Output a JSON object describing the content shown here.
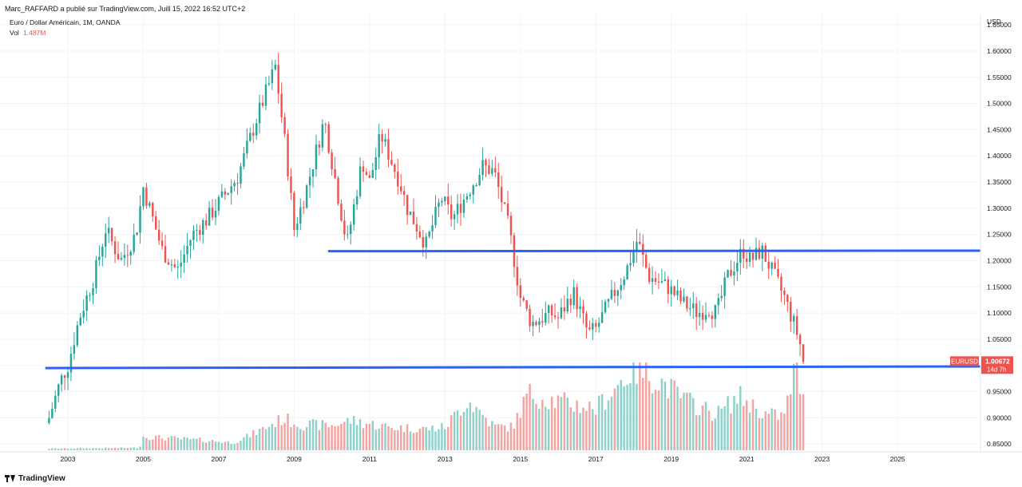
{
  "header": {
    "publisher_line": "Marc_RAFFARD a publié sur TradingView.com, Juill 15, 2022 16:52 UTC+2"
  },
  "footer": {
    "brand": "TradingView"
  },
  "colors": {
    "up": "#26a69a",
    "down": "#ef5350",
    "vol_up": "#8fd1ca",
    "vol_down": "#f5a3a1",
    "trendline": "#2962ff",
    "grid": "#f0f3fa",
    "axis_text": "#131722"
  },
  "chart_data": {
    "type": "candlestick",
    "title": "Euro / Dollar Américain, 1M, OANDA",
    "volume_label": "Vol",
    "volume_value": "1.487M",
    "currency_label": "USD",
    "symbol_tag": "EURUSD",
    "last_price": "1.00672",
    "countdown": "14d 7h",
    "ylim": [
      0.835,
      1.67
    ],
    "y_ticks": [
      "1.65000",
      "1.60000",
      "1.55000",
      "1.50000",
      "1.45000",
      "1.40000",
      "1.35000",
      "1.30000",
      "1.25000",
      "1.20000",
      "1.15000",
      "1.10000",
      "1.05000",
      "1.00000",
      "0.95000",
      "0.90000",
      "0.85000"
    ],
    "x_ticks": [
      "2003",
      "2005",
      "2007",
      "2009",
      "2011",
      "2013",
      "2015",
      "2017",
      "2019",
      "2021",
      "2023",
      "2025"
    ],
    "xlim": [
      2001.2,
      2027.2
    ],
    "horizontal_lines": [
      {
        "name": "resistance-support-upper",
        "x1": 2009.9,
        "x2": 2027.2,
        "y1": 1.218,
        "y2": 1.219
      },
      {
        "name": "resistance-support-lower",
        "x1": 2002.4,
        "x2": 2027.2,
        "y1": 0.995,
        "y2": 0.998
      }
    ],
    "price_path": [
      [
        2002.5,
        0.9
      ],
      [
        2002.8,
        0.97
      ],
      [
        2003.0,
        1.0
      ],
      [
        2003.3,
        1.09
      ],
      [
        2003.7,
        1.17
      ],
      [
        2004.0,
        1.26
      ],
      [
        2004.4,
        1.2
      ],
      [
        2004.8,
        1.25
      ],
      [
        2005.0,
        1.34
      ],
      [
        2005.5,
        1.22
      ],
      [
        2005.9,
        1.18
      ],
      [
        2006.3,
        1.25
      ],
      [
        2006.7,
        1.28
      ],
      [
        2007.0,
        1.31
      ],
      [
        2007.5,
        1.36
      ],
      [
        2008.0,
        1.47
      ],
      [
        2008.5,
        1.57
      ],
      [
        2008.8,
        1.4
      ],
      [
        2009.0,
        1.26
      ],
      [
        2009.3,
        1.33
      ],
      [
        2009.8,
        1.47
      ],
      [
        2010.0,
        1.39
      ],
      [
        2010.4,
        1.23
      ],
      [
        2010.8,
        1.39
      ],
      [
        2011.0,
        1.35
      ],
      [
        2011.3,
        1.44
      ],
      [
        2011.8,
        1.35
      ],
      [
        2012.0,
        1.3
      ],
      [
        2012.5,
        1.23
      ],
      [
        2012.9,
        1.32
      ],
      [
        2013.2,
        1.28
      ],
      [
        2013.6,
        1.33
      ],
      [
        2014.0,
        1.38
      ],
      [
        2014.3,
        1.37
      ],
      [
        2014.7,
        1.26
      ],
      [
        2015.0,
        1.13
      ],
      [
        2015.3,
        1.08
      ],
      [
        2015.8,
        1.1
      ],
      [
        2016.0,
        1.09
      ],
      [
        2016.4,
        1.14
      ],
      [
        2016.8,
        1.06
      ],
      [
        2017.0,
        1.07
      ],
      [
        2017.5,
        1.14
      ],
      [
        2017.8,
        1.18
      ],
      [
        2018.1,
        1.24
      ],
      [
        2018.4,
        1.17
      ],
      [
        2018.9,
        1.15
      ],
      [
        2019.3,
        1.12
      ],
      [
        2019.7,
        1.1
      ],
      [
        2020.0,
        1.11
      ],
      [
        2020.2,
        1.1
      ],
      [
        2020.5,
        1.17
      ],
      [
        2020.9,
        1.22
      ],
      [
        2021.1,
        1.2
      ],
      [
        2021.4,
        1.22
      ],
      [
        2021.8,
        1.16
      ],
      [
        2022.0,
        1.13
      ],
      [
        2022.3,
        1.07
      ],
      [
        2022.55,
        1.00672
      ]
    ],
    "volume_path": [
      [
        2002.5,
        0.02
      ],
      [
        2004.9,
        0.03
      ],
      [
        2005.0,
        0.16
      ],
      [
        2006.5,
        0.12
      ],
      [
        2007.4,
        0.09
      ],
      [
        2008.0,
        0.21
      ],
      [
        2008.7,
        0.37
      ],
      [
        2009.2,
        0.3
      ],
      [
        2010.0,
        0.29
      ],
      [
        2010.5,
        0.35
      ],
      [
        2011.5,
        0.27
      ],
      [
        2012.5,
        0.25
      ],
      [
        2013.0,
        0.27
      ],
      [
        2013.6,
        0.59
      ],
      [
        2014.3,
        0.28
      ],
      [
        2014.8,
        0.27
      ],
      [
        2015.2,
        0.66
      ],
      [
        2016.0,
        0.57
      ],
      [
        2017.0,
        0.49
      ],
      [
        2018.0,
        0.96
      ],
      [
        2018.6,
        0.84
      ],
      [
        2019.4,
        0.58
      ],
      [
        2020.2,
        0.42
      ],
      [
        2020.8,
        0.63
      ],
      [
        2021.5,
        0.42
      ],
      [
        2022.0,
        0.4
      ],
      [
        2022.3,
        1.0
      ],
      [
        2022.55,
        0.46
      ]
    ]
  }
}
